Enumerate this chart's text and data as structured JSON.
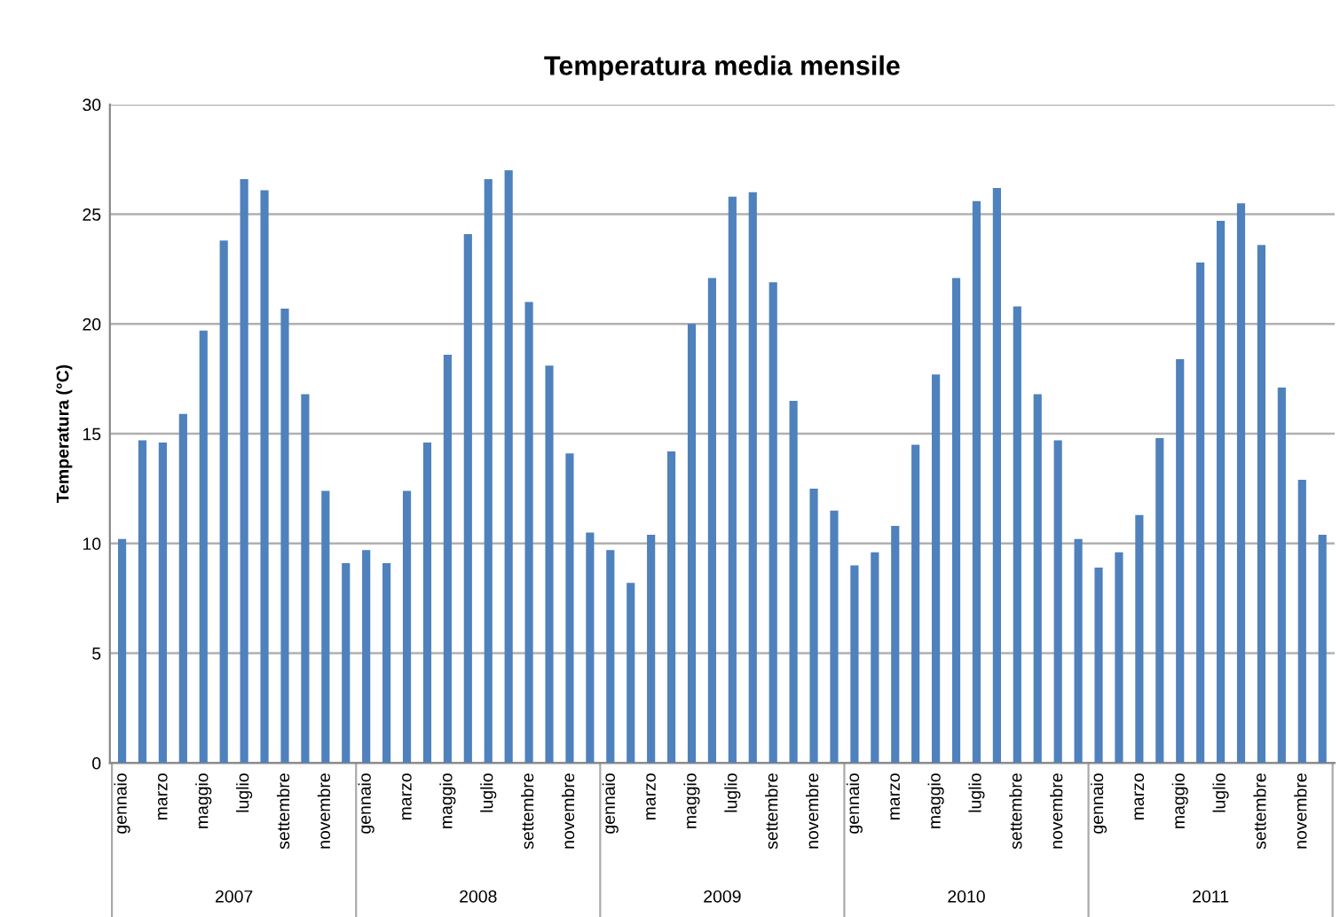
{
  "chart_data": {
    "type": "bar",
    "title": "Temperatura media mensile",
    "ylabel": "Temperatura (°C)",
    "categories": [
      "gennaio",
      null,
      "marzo",
      null,
      "maggio",
      null,
      "luglio",
      null,
      "settembre",
      null,
      "novembre",
      null,
      "gennaio",
      null,
      "marzo",
      null,
      "maggio",
      null,
      "luglio",
      null,
      "settembre",
      null,
      "novembre",
      null,
      "gennaio",
      null,
      "marzo",
      null,
      "maggio",
      null,
      "luglio",
      null,
      "settembre",
      null,
      "novembre",
      null,
      "gennaio",
      null,
      "marzo",
      null,
      "maggio",
      null,
      "luglio",
      null,
      "settembre",
      null,
      "novembre",
      null,
      "gennaio",
      null,
      "marzo",
      null,
      "maggio",
      null,
      "luglio",
      null,
      "settembre",
      null,
      "novembre",
      null
    ],
    "values": [
      10.2,
      14.7,
      14.6,
      15.9,
      19.7,
      23.8,
      26.6,
      26.1,
      20.7,
      16.8,
      12.4,
      9.1,
      9.7,
      9.1,
      12.4,
      14.6,
      18.6,
      24.1,
      26.6,
      27.0,
      21.0,
      18.1,
      14.1,
      10.5,
      9.7,
      8.2,
      10.4,
      14.2,
      20.0,
      22.1,
      25.8,
      26.0,
      21.9,
      16.5,
      12.5,
      11.5,
      9.0,
      9.6,
      10.8,
      14.5,
      17.7,
      22.1,
      25.6,
      26.2,
      20.8,
      16.8,
      14.7,
      10.2,
      8.9,
      9.6,
      11.3,
      14.8,
      18.4,
      22.8,
      24.7,
      25.5,
      23.6,
      17.1,
      12.9,
      10.4
    ],
    "color": "#4f81bd",
    "ylim": [
      0,
      30
    ],
    "yticks": [
      0,
      5,
      10,
      15,
      20,
      25,
      30
    ],
    "grid": "y",
    "legend": false,
    "annotations": [
      "2007",
      "2008",
      "2009",
      "2010",
      "2011"
    ]
  }
}
